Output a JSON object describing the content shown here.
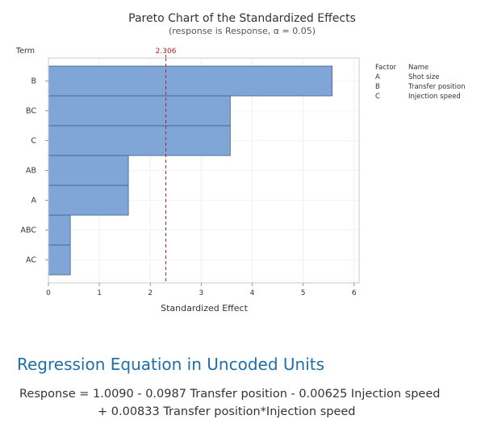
{
  "chart_data": {
    "type": "bar",
    "orientation": "horizontal",
    "title": "Pareto Chart of the Standardized Effects",
    "subtitle": "(response is Response, α = 0.05)",
    "xlabel": "Standardized Effect",
    "ylabel": "Term",
    "categories": [
      "B",
      "BC",
      "C",
      "AB",
      "A",
      "ABC",
      "AC"
    ],
    "values": [
      5.57,
      3.57,
      3.57,
      1.57,
      1.57,
      0.43,
      0.43
    ],
    "xlim": [
      0,
      6.1
    ],
    "xticks": [
      "0",
      "1",
      "2",
      "3",
      "4",
      "5",
      "6"
    ],
    "reference_line": {
      "value": 2.306,
      "label": "2.306",
      "color": "#b22222"
    },
    "bar_color": "#7fa6d6",
    "bar_edge_color": "#3f5f8a",
    "grid": true,
    "legend": {
      "placement": "right",
      "header_factor": "Factor",
      "header_name": "Name",
      "entries": [
        {
          "factor": "A",
          "name": "Shot size"
        },
        {
          "factor": "B",
          "name": "Transfer position"
        },
        {
          "factor": "C",
          "name": "Injection speed"
        }
      ]
    }
  },
  "regression": {
    "heading": "Regression Equation in Uncoded Units",
    "line1": "Response = 1.0090 - 0.0987 Transfer position - 0.00625 Injection speed",
    "line2": "+ 0.00833 Transfer position*Injection speed"
  }
}
